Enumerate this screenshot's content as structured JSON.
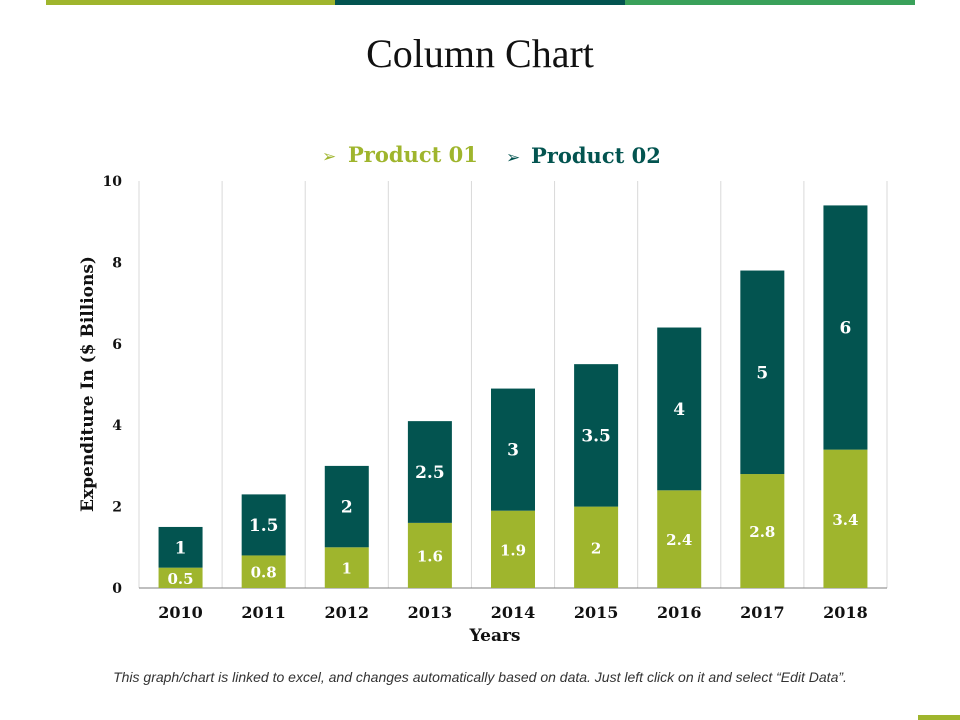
{
  "slide": {
    "title": "Column Chart",
    "footnote": "This graph/chart is linked to excel, and changes automatically based on data. Just left click on it and select “Edit Data”."
  },
  "colors": {
    "product01": "#9fb52d",
    "product02": "#035450",
    "accent_green": "#3aa15a",
    "grid": "#d9d9d9",
    "axis": "#7f7f7f",
    "text": "#111111"
  },
  "chart_data": {
    "type": "bar",
    "stacked": true,
    "categories": [
      "2010",
      "2011",
      "2012",
      "2013",
      "2014",
      "2015",
      "2016",
      "2017",
      "2018"
    ],
    "series": [
      {
        "name": "Product 01",
        "values": [
          0.5,
          0.8,
          1,
          1.6,
          1.9,
          2,
          2.4,
          2.8,
          3.4
        ]
      },
      {
        "name": "Product 02",
        "values": [
          1,
          1.5,
          2,
          2.5,
          3,
          3.5,
          4,
          5,
          6
        ]
      }
    ],
    "data_labels": {
      "Product 01": [
        "0.5",
        "0.8",
        "1",
        "1.6",
        "1.9",
        "2",
        "2.4",
        "2.8",
        "3.4"
      ],
      "Product 02": [
        "1",
        "1.5",
        "2",
        "2.5",
        "3",
        "3.5",
        "4",
        "5",
        "6"
      ]
    },
    "legend_marker": "➢",
    "yticks": [
      0,
      2,
      4,
      6,
      8,
      10
    ],
    "ylim": [
      0,
      10
    ],
    "xlabel": "Years",
    "ylabel": "Expenditure In ($ Billions)",
    "legend": "top",
    "grid": "vertical"
  }
}
